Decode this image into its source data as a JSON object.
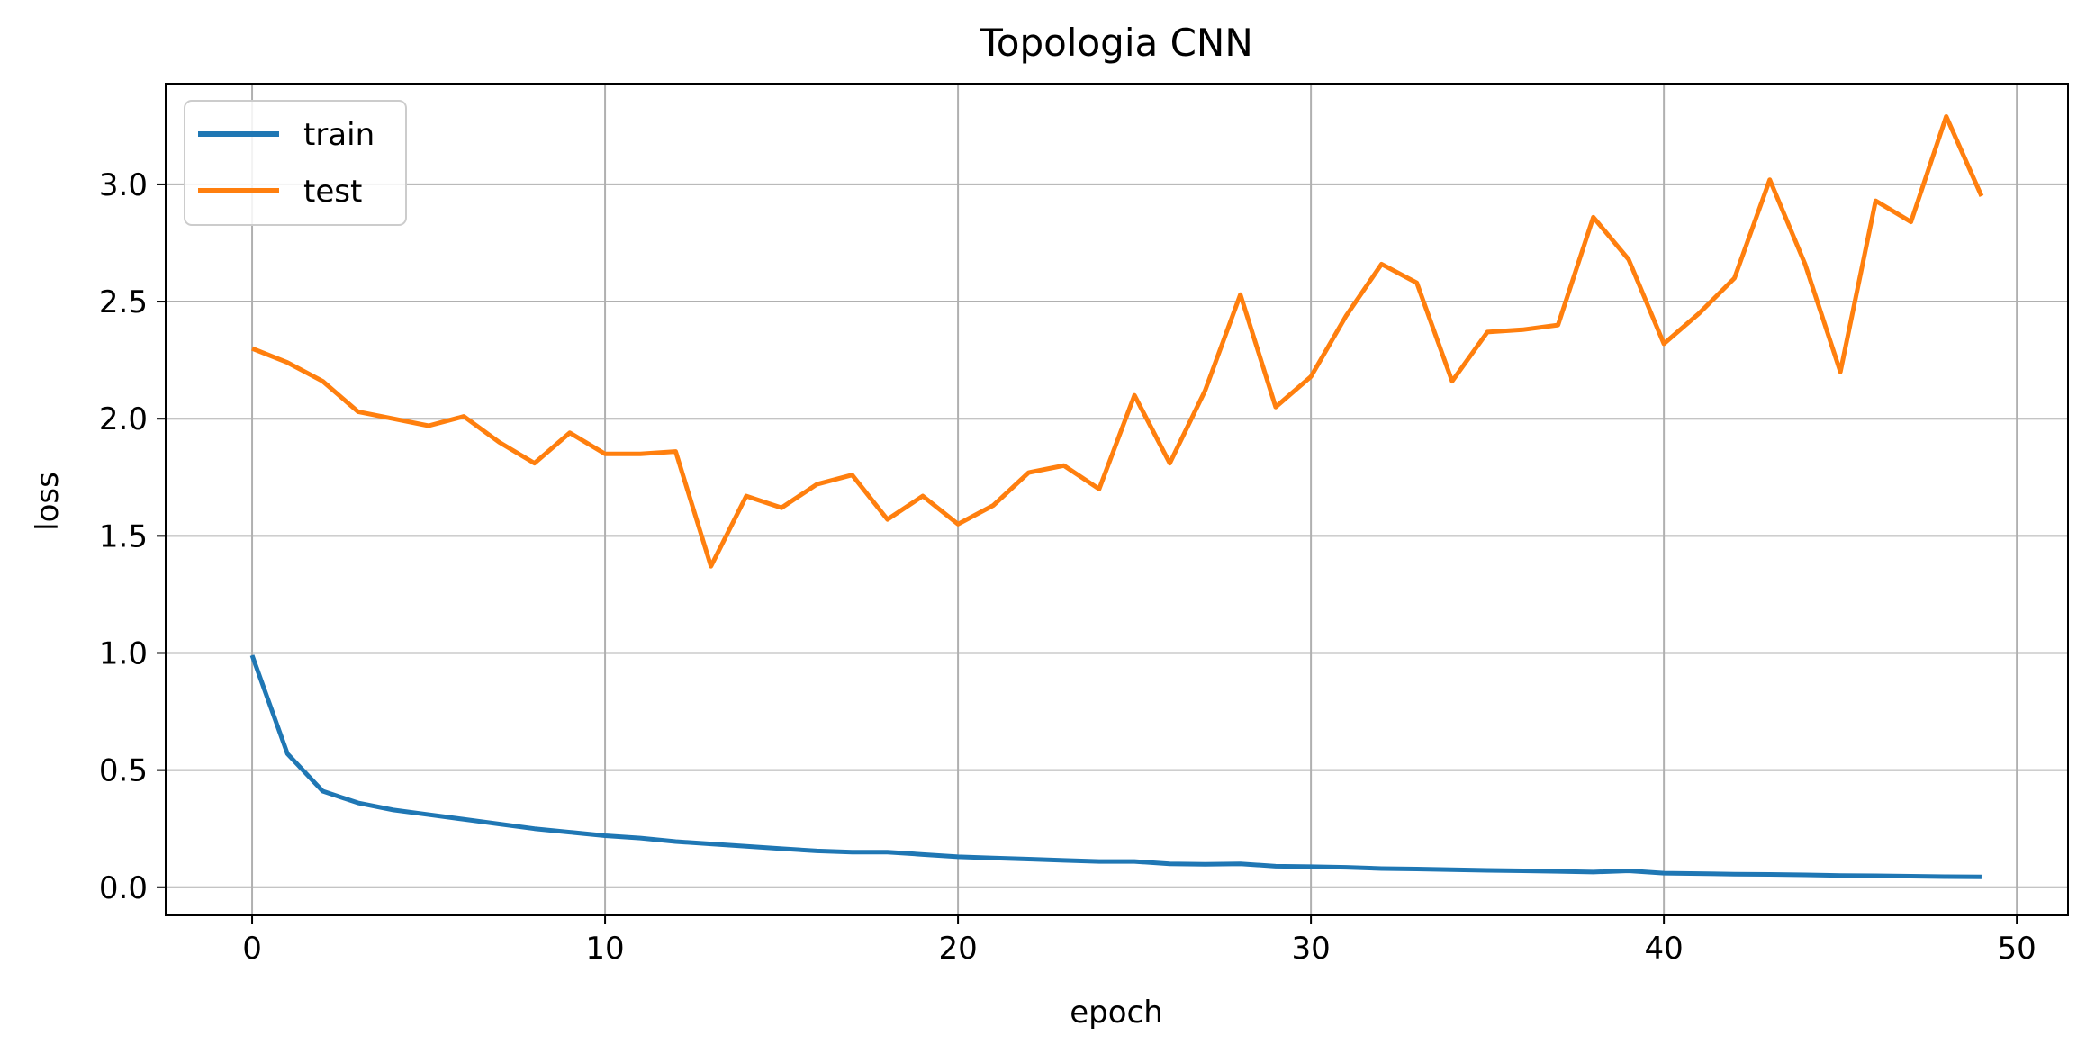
{
  "chart_data": {
    "type": "line",
    "title": "Topologia CNN",
    "xlabel": "epoch",
    "ylabel": "loss",
    "xlim": [
      -2.45,
      51.45
    ],
    "ylim": [
      -0.12,
      3.43
    ],
    "xticks": [
      0,
      10,
      20,
      30,
      40,
      50
    ],
    "yticks": [
      0.0,
      0.5,
      1.0,
      1.5,
      2.0,
      2.5,
      3.0
    ],
    "xtick_labels": [
      "0",
      "10",
      "20",
      "30",
      "40",
      "50"
    ],
    "ytick_labels": [
      "0.0",
      "0.5",
      "1.0",
      "1.5",
      "2.0",
      "2.5",
      "3.0"
    ],
    "grid": true,
    "legend_position": "top-left",
    "x": [
      0,
      1,
      2,
      3,
      4,
      5,
      6,
      7,
      8,
      9,
      10,
      11,
      12,
      13,
      14,
      15,
      16,
      17,
      18,
      19,
      20,
      21,
      22,
      23,
      24,
      25,
      26,
      27,
      28,
      29,
      30,
      31,
      32,
      33,
      34,
      35,
      36,
      37,
      38,
      39,
      40,
      41,
      42,
      43,
      44,
      45,
      46,
      47,
      48,
      49
    ],
    "series": [
      {
        "name": "train",
        "color": "#1f77b4",
        "values": [
          0.99,
          0.57,
          0.41,
          0.36,
          0.33,
          0.31,
          0.29,
          0.27,
          0.25,
          0.235,
          0.22,
          0.21,
          0.195,
          0.185,
          0.175,
          0.165,
          0.155,
          0.15,
          0.15,
          0.14,
          0.13,
          0.125,
          0.12,
          0.115,
          0.11,
          0.11,
          0.1,
          0.098,
          0.1,
          0.09,
          0.088,
          0.085,
          0.08,
          0.078,
          0.075,
          0.072,
          0.07,
          0.068,
          0.065,
          0.07,
          0.06,
          0.058,
          0.056,
          0.055,
          0.053,
          0.05,
          0.049,
          0.047,
          0.045,
          0.044
        ]
      },
      {
        "name": "test",
        "color": "#ff7f0e",
        "values": [
          2.3,
          2.24,
          2.16,
          2.03,
          2.0,
          1.97,
          2.01,
          1.9,
          1.81,
          1.94,
          1.85,
          1.85,
          1.86,
          1.37,
          1.67,
          1.62,
          1.72,
          1.76,
          1.57,
          1.67,
          1.55,
          1.63,
          1.77,
          1.8,
          1.7,
          2.1,
          1.81,
          2.12,
          2.53,
          2.05,
          2.18,
          2.44,
          2.66,
          2.58,
          2.16,
          2.37,
          2.38,
          2.4,
          2.86,
          2.68,
          2.32,
          2.45,
          2.6,
          3.02,
          2.66,
          2.2,
          2.93,
          2.84,
          3.29,
          2.95
        ]
      }
    ]
  }
}
